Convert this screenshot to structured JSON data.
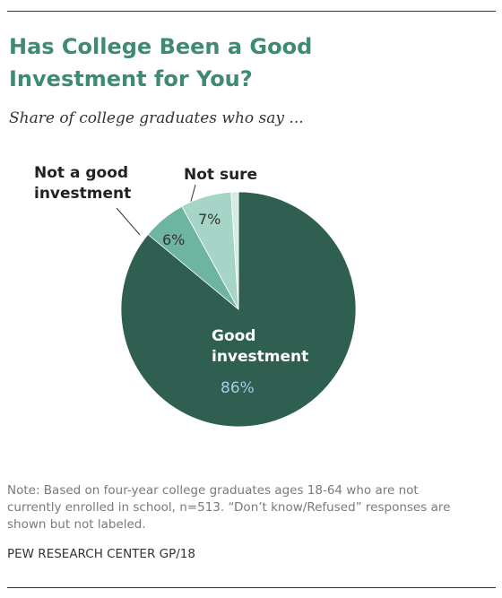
{
  "chart_data": {
    "type": "pie",
    "title": "Has College Been a Good Investment for You?",
    "subtitle": "Share of college graduates who say ...",
    "categories": [
      "Good investment",
      "Not a good investment",
      "Not sure",
      null
    ],
    "values": [
      86,
      6,
      7,
      1
    ],
    "value_labels": [
      "86%",
      "6%",
      "7%",
      null
    ],
    "colors": [
      "#2f5f50",
      "#6db5a0",
      "#a6d4c6",
      "#d3ece4"
    ],
    "note": "Note: Based on four-year college graduates ages 18-64 who are not currently enrolled in school, n=513. “Don’t know/Refused” responses are shown but not labeled.",
    "source": "PEW RESEARCH CENTER GP/18"
  }
}
